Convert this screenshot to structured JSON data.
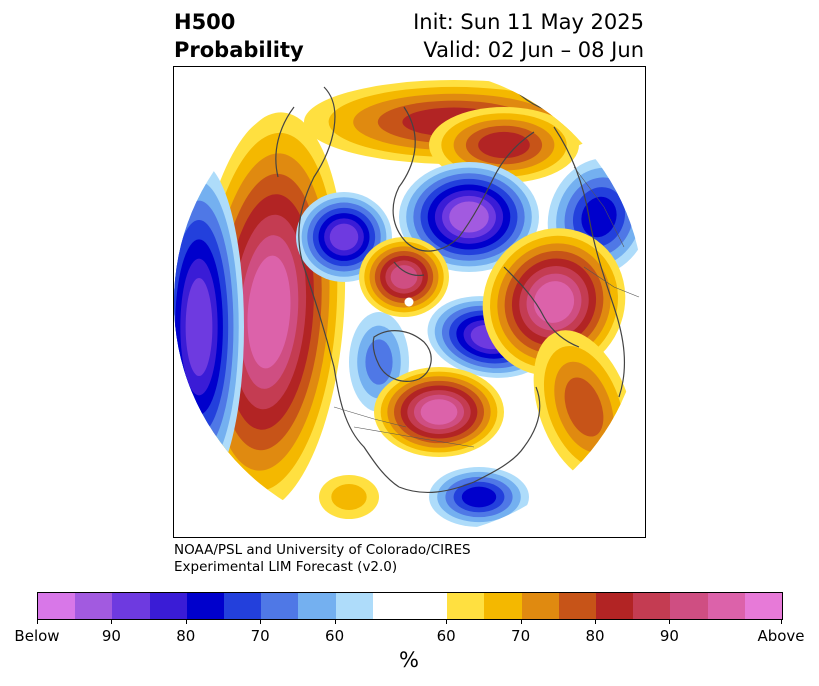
{
  "title": {
    "left_line1": "H500",
    "left_line2": "Probability",
    "right_line1": "Init: Sun 11 May 2025",
    "right_line2": "Valid: 02 Jun – 08 Jun"
  },
  "credit": {
    "line1": "NOAA/PSL and University of Colorado/CIRES",
    "line2": "Experimental LIM Forecast (v2.0)"
  },
  "colorbar": {
    "unit": "%",
    "colors": [
      "#d877e8",
      "#a25ae0",
      "#6e3ae0",
      "#3a1cd6",
      "#0000cc",
      "#2340dc",
      "#4f78e6",
      "#74b0f0",
      "#aedcfa",
      "#ffffff",
      "#ffe040",
      "#f4b800",
      "#e08a10",
      "#c75418",
      "#b22424",
      "#c43c52",
      "#cf4e82",
      "#dc62aa",
      "#e77ad8"
    ],
    "tick_labels": [
      "Below",
      "90",
      "80",
      "70",
      "60",
      "60",
      "70",
      "80",
      "90",
      "Above"
    ]
  },
  "map": {
    "projection": "north-polar-stereographic",
    "field": "500-hPa geopotential height probability",
    "colors": {
      "b1": "#aedcfa",
      "b2": "#74b0f0",
      "b3": "#4f78e6",
      "b4": "#2340dc",
      "b5": "#0000cc",
      "b6": "#3a1cd6",
      "b7": "#6e3ae0",
      "b8": "#a25ae0",
      "a1": "#ffe040",
      "a2": "#f4b800",
      "a3": "#e08a10",
      "a4": "#c75418",
      "a5": "#b22424",
      "a6": "#c43c52",
      "a7": "#cf4e82",
      "a8": "#dc62aa"
    }
  }
}
